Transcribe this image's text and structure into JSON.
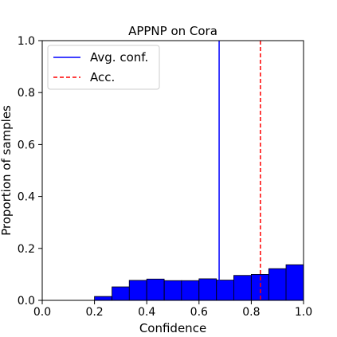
{
  "chart_data": {
    "type": "bar",
    "title": "APPNP on Cora",
    "xlabel": "Confidence",
    "ylabel": "Proportion of samples",
    "xlim": [
      0.0,
      1.0
    ],
    "ylim": [
      0.0,
      1.0
    ],
    "xticks": [
      "0.0",
      "0.2",
      "0.4",
      "0.6",
      "0.8",
      "1.0"
    ],
    "yticks": [
      "0.0",
      "0.2",
      "0.4",
      "0.6",
      "0.8",
      "1.0"
    ],
    "bin_width": 0.0667,
    "bins": [
      {
        "start": 0.2,
        "value": 0.015
      },
      {
        "start": 0.267,
        "value": 0.052
      },
      {
        "start": 0.333,
        "value": 0.077
      },
      {
        "start": 0.4,
        "value": 0.082
      },
      {
        "start": 0.467,
        "value": 0.076
      },
      {
        "start": 0.533,
        "value": 0.076
      },
      {
        "start": 0.6,
        "value": 0.083
      },
      {
        "start": 0.667,
        "value": 0.078
      },
      {
        "start": 0.733,
        "value": 0.096
      },
      {
        "start": 0.8,
        "value": 0.1
      },
      {
        "start": 0.867,
        "value": 0.122
      },
      {
        "start": 0.933,
        "value": 0.137
      }
    ],
    "bar_color": "#0000ff",
    "bar_edge_color": "#000000",
    "reference_lines": [
      {
        "name": "Avg. conf.",
        "x": 0.677,
        "color": "#0000ff",
        "style": "solid"
      },
      {
        "name": "Acc.",
        "x": 0.835,
        "color": "#ff0000",
        "style": "dashed"
      }
    ],
    "legend_position": "top-left",
    "grid": false
  }
}
